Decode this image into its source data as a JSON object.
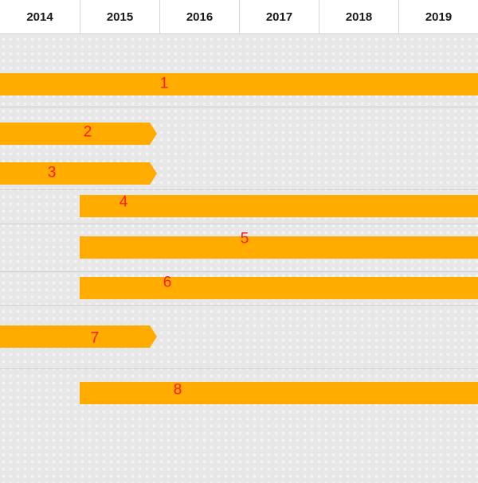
{
  "chart_data": {
    "type": "gantt",
    "x_axis": {
      "type": "year",
      "ticks": [
        "2014",
        "2015",
        "2016",
        "2017",
        "2018",
        "2019"
      ],
      "range": [
        2014,
        2020
      ]
    },
    "bars": [
      {
        "label": "1",
        "start": 2014,
        "end": 2020,
        "end_shape": "flat"
      },
      {
        "label": "2",
        "start": 2014,
        "end": 2016,
        "end_shape": "arrow"
      },
      {
        "label": "3",
        "start": 2014,
        "end": 2016,
        "end_shape": "arrow"
      },
      {
        "label": "4",
        "start": 2015,
        "end": 2020,
        "end_shape": "flat"
      },
      {
        "label": "5",
        "start": 2015,
        "end": 2020,
        "end_shape": "flat"
      },
      {
        "label": "6",
        "start": 2015,
        "end": 2020,
        "end_shape": "flat"
      },
      {
        "label": "7",
        "start": 2014,
        "end": 2016,
        "end_shape": "arrow"
      },
      {
        "label": "8",
        "start": 2015,
        "end": 2020,
        "end_shape": "flat"
      }
    ],
    "bar_color": "#FFAB00",
    "label_color": "#FF1A1A",
    "background": "light gray world-map dot pattern"
  }
}
